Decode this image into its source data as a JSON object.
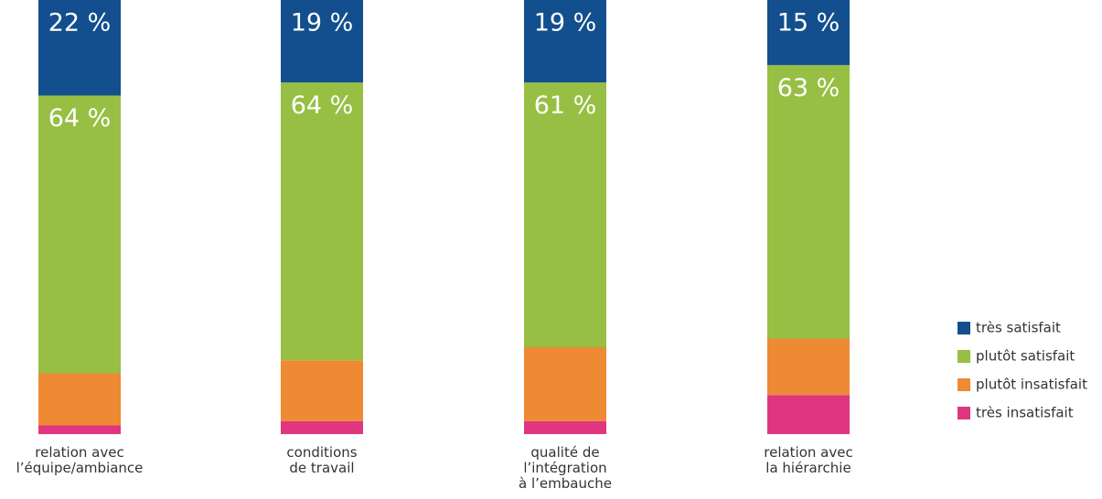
{
  "chart_data": {
    "type": "stacked_bar",
    "categories": [
      "relation avec\nl’équipe/ambiance",
      "conditions\nde travail",
      "qualité de\nl’intégration\nà l’embauche",
      "relation avec\nla hiérarchie"
    ],
    "ylim": [
      0,
      100
    ],
    "legend": "right",
    "series": [
      {
        "name": "très satisfait",
        "color": "#134f8e",
        "values": [
          22,
          19,
          19,
          15
        ],
        "value_labels": [
          "22 %",
          "19 %",
          "19 %",
          "15 %"
        ]
      },
      {
        "name": "plutôt satisfait",
        "color": "#97bf43",
        "values": [
          64,
          64,
          61,
          63
        ],
        "value_labels": [
          "64 %",
          "64 %",
          "61 %",
          "63 %"
        ]
      },
      {
        "name": "plutôt insatisfait",
        "color": "#ee8934",
        "values": [
          12,
          14,
          17,
          13
        ]
      },
      {
        "name": "très insatisfait",
        "color": "#e0367f",
        "values": [
          2,
          3,
          3,
          9
        ]
      }
    ]
  }
}
